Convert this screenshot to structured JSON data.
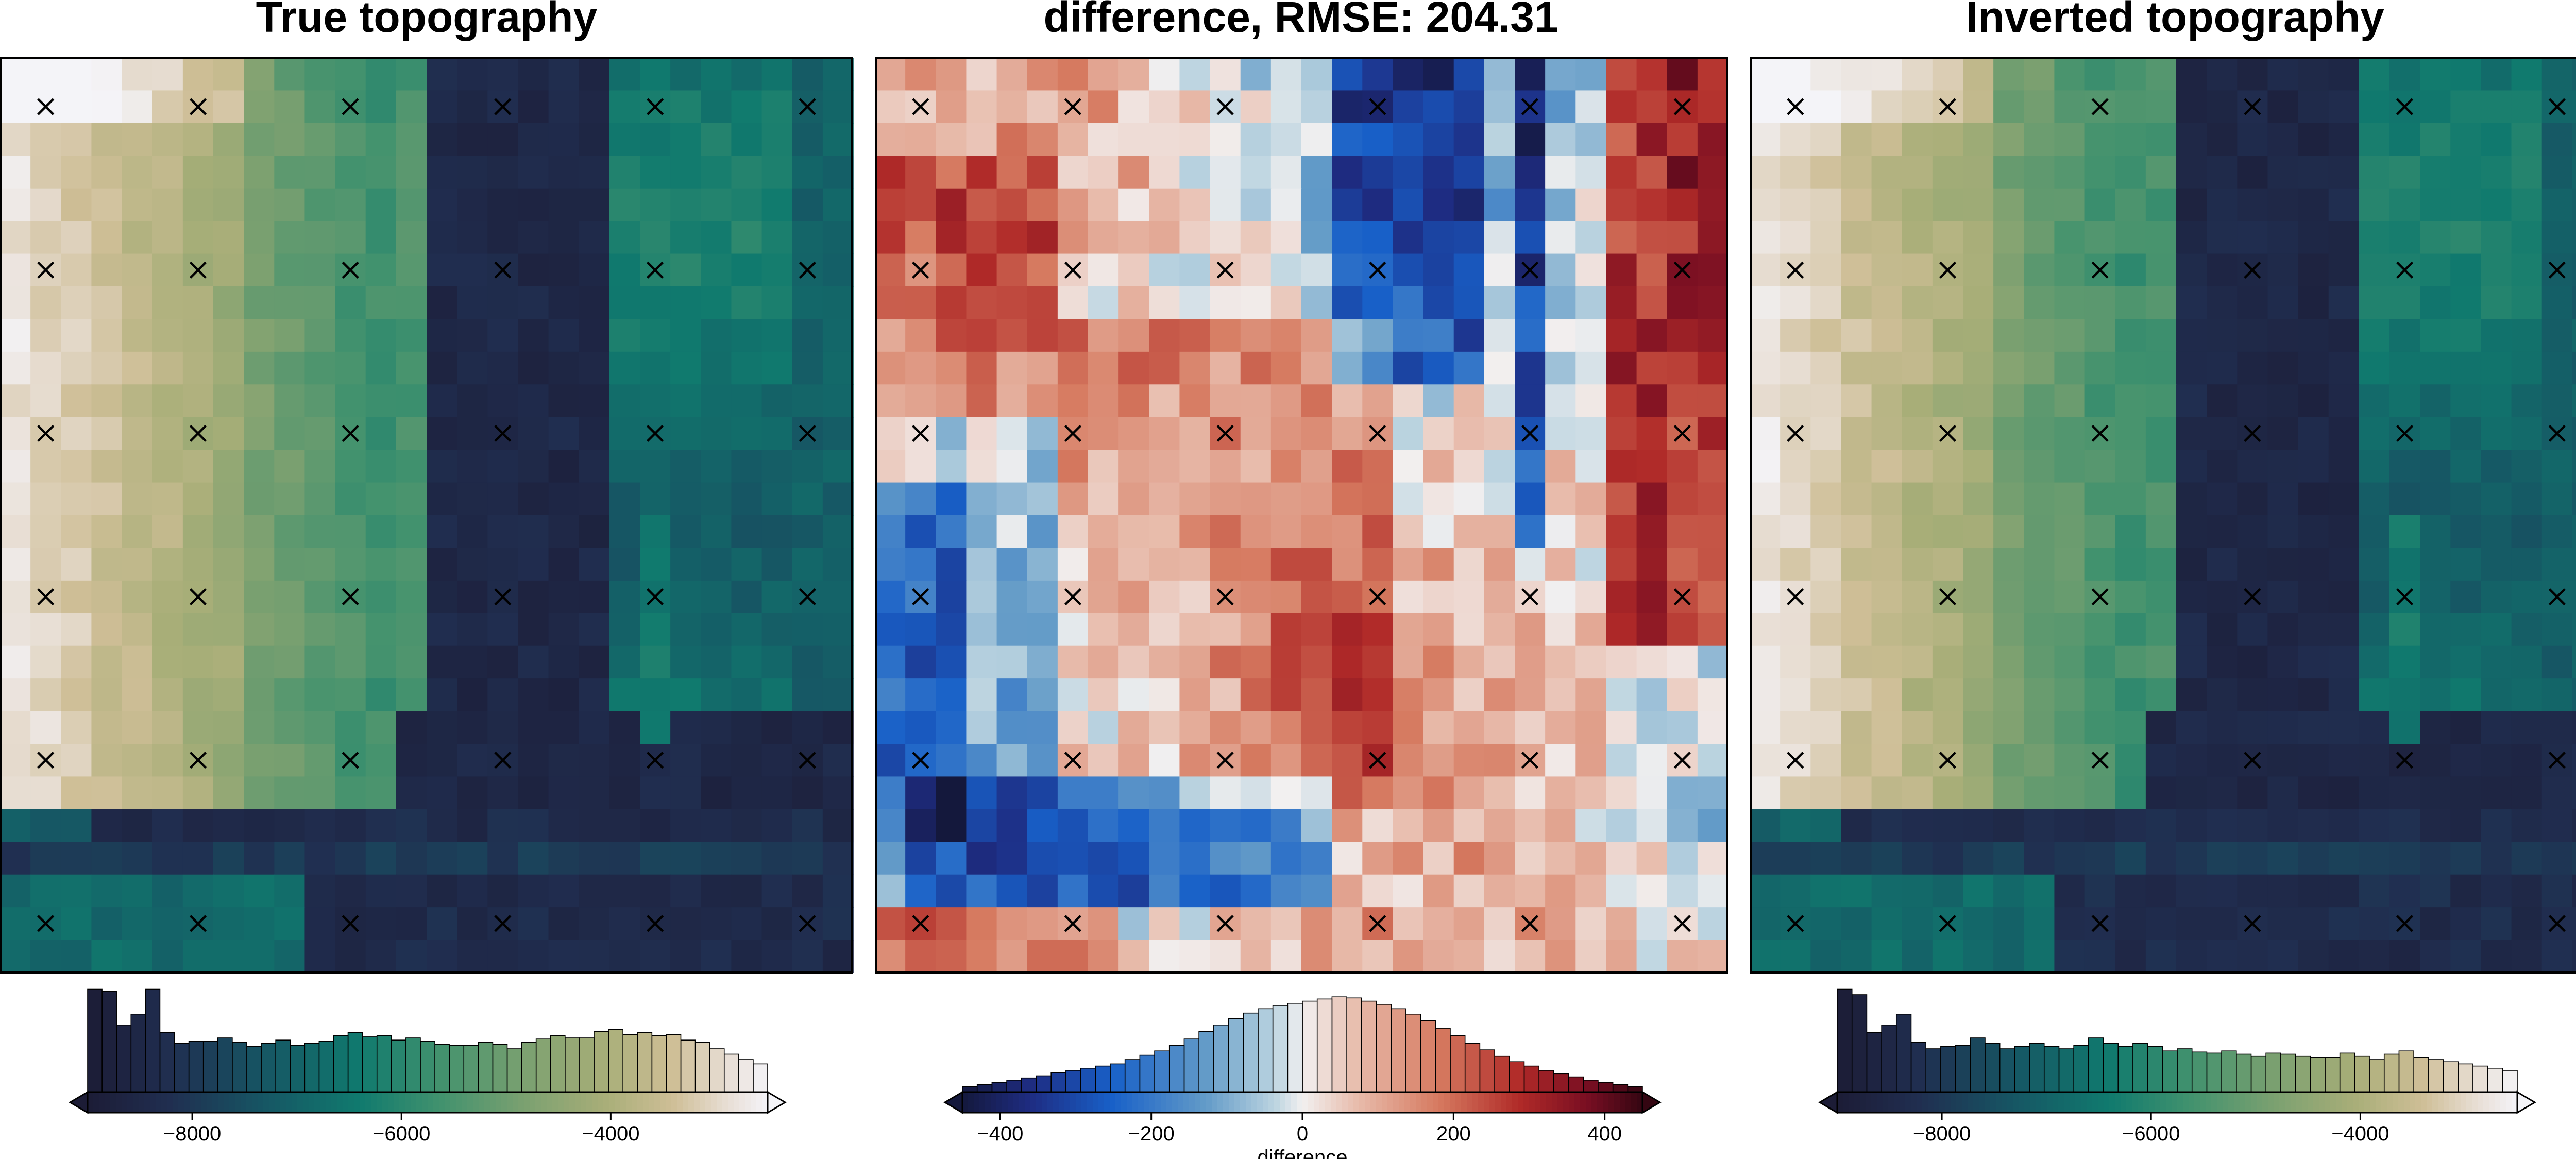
{
  "chart_data": [
    {
      "type": "heatmap",
      "title": "True topography",
      "colormap": "batlow-like: dark navy -> teal -> green -> khaki -> white",
      "colorbar": {
        "range": [
          -9000,
          -2500
        ],
        "ticks": [
          -8000,
          -6000,
          -4000
        ],
        "tick_labels": [
          "−8000",
          "−6000",
          "−4000"
        ],
        "label": "",
        "histogram": [
          0.95,
          0.93,
          0.62,
          0.72,
          0.95,
          0.55,
          0.45,
          0.47,
          0.47,
          0.5,
          0.46,
          0.42,
          0.45,
          0.48,
          0.43,
          0.45,
          0.47,
          0.52,
          0.55,
          0.51,
          0.52,
          0.48,
          0.5,
          0.47,
          0.44,
          0.43,
          0.43,
          0.46,
          0.44,
          0.4,
          0.46,
          0.49,
          0.52,
          0.5,
          0.5,
          0.56,
          0.58,
          0.53,
          0.55,
          0.52,
          0.53,
          0.48,
          0.46,
          0.4,
          0.35,
          0.3,
          0.26
        ]
      },
      "markers": {
        "cols": [
          1,
          6,
          11,
          16,
          21,
          26
        ],
        "rows": [
          1,
          6,
          11,
          16,
          21,
          26
        ],
        "symbol": "x"
      }
    },
    {
      "type": "heatmap",
      "title": "difference, RMSE: 204.31",
      "colormap": "balance (diverging): blue -> white -> red",
      "colorbar": {
        "range": [
          -450,
          450
        ],
        "ticks": [
          -400,
          -200,
          0,
          200,
          400
        ],
        "tick_labels": [
          "−400",
          "−200",
          "0",
          "200",
          "400"
        ],
        "label": "difference",
        "histogram": [
          0.05,
          0.07,
          0.09,
          0.11,
          0.13,
          0.15,
          0.18,
          0.2,
          0.22,
          0.24,
          0.26,
          0.3,
          0.34,
          0.38,
          0.43,
          0.49,
          0.56,
          0.62,
          0.68,
          0.73,
          0.77,
          0.8,
          0.82,
          0.84,
          0.86,
          0.88,
          0.87,
          0.84,
          0.81,
          0.77,
          0.72,
          0.66,
          0.59,
          0.52,
          0.45,
          0.39,
          0.33,
          0.28,
          0.24,
          0.2,
          0.17,
          0.14,
          0.11,
          0.09,
          0.07,
          0.05
        ]
      },
      "markers": {
        "cols": [
          1,
          6,
          11,
          16,
          21,
          26
        ],
        "rows": [
          1,
          6,
          11,
          16,
          21,
          26
        ],
        "symbol": "x"
      }
    },
    {
      "type": "heatmap",
      "title": "Inverted topography",
      "colormap": "batlow-like: dark navy -> teal -> green -> khaki -> white",
      "colorbar": {
        "range": [
          -9000,
          -2500
        ],
        "ticks": [
          -8000,
          -6000,
          -4000
        ],
        "tick_labels": [
          "−8000",
          "−6000",
          "−4000"
        ],
        "label": "",
        "histogram": [
          0.95,
          0.9,
          0.55,
          0.62,
          0.72,
          0.46,
          0.4,
          0.42,
          0.43,
          0.5,
          0.45,
          0.4,
          0.42,
          0.45,
          0.42,
          0.4,
          0.43,
          0.5,
          0.45,
          0.42,
          0.45,
          0.42,
          0.38,
          0.4,
          0.37,
          0.36,
          0.38,
          0.35,
          0.33,
          0.36,
          0.35,
          0.33,
          0.32,
          0.32,
          0.36,
          0.33,
          0.3,
          0.35,
          0.38,
          0.32,
          0.3,
          0.28,
          0.26,
          0.24,
          0.22,
          0.2
        ]
      },
      "markers": {
        "cols": [
          1,
          6,
          11,
          16,
          21,
          26
        ],
        "rows": [
          1,
          6,
          11,
          16,
          21,
          26
        ],
        "symbol": "x"
      }
    }
  ]
}
